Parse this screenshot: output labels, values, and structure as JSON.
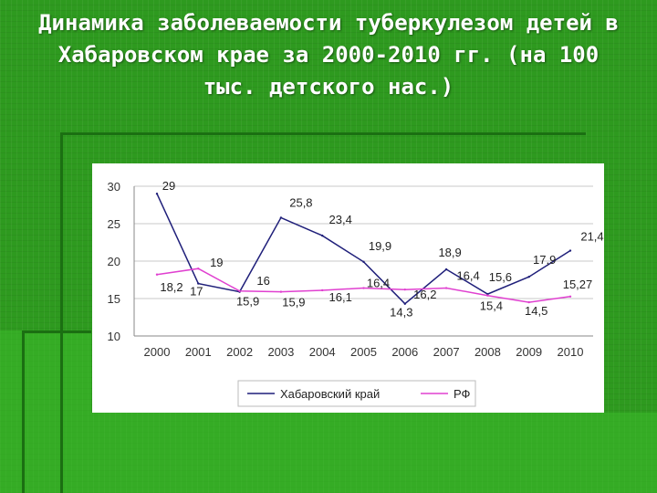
{
  "title": "Динамика заболеваемости туберкулезом детей в Хабаровском крае за 2000-2010 гг. (на 100 тыс. детского нас.)",
  "chart_data": {
    "type": "line",
    "categories": [
      "2000",
      "2001",
      "2002",
      "2003",
      "2004",
      "2005",
      "2006",
      "2007",
      "2008",
      "2009",
      "2010"
    ],
    "ylim": [
      10,
      30
    ],
    "yticks": [
      10,
      15,
      20,
      25,
      30
    ],
    "grid": true,
    "legend_position": "bottom",
    "series": [
      {
        "name": "Хабаровский край",
        "color": "#1f1f7a",
        "values": [
          29,
          17,
          15.9,
          25.8,
          23.4,
          19.9,
          14.3,
          18.9,
          15.6,
          17.9,
          21.4
        ],
        "labels": [
          "29",
          "17",
          "15,9",
          "25,8",
          "23,4",
          "19,9",
          "14,3",
          "18,9",
          "15,6",
          "17,9",
          "21,4"
        ]
      },
      {
        "name": "РФ",
        "color": "#e040d0",
        "values": [
          18.2,
          19,
          16,
          15.9,
          16.1,
          16.4,
          16.2,
          16.4,
          15.4,
          14.5,
          15.27
        ],
        "labels": [
          "18,2",
          "19",
          "16",
          "15,9",
          "16,1",
          "16,4",
          "16,2",
          "16,4",
          "15,4",
          "14,5",
          "15,27"
        ]
      }
    ]
  }
}
